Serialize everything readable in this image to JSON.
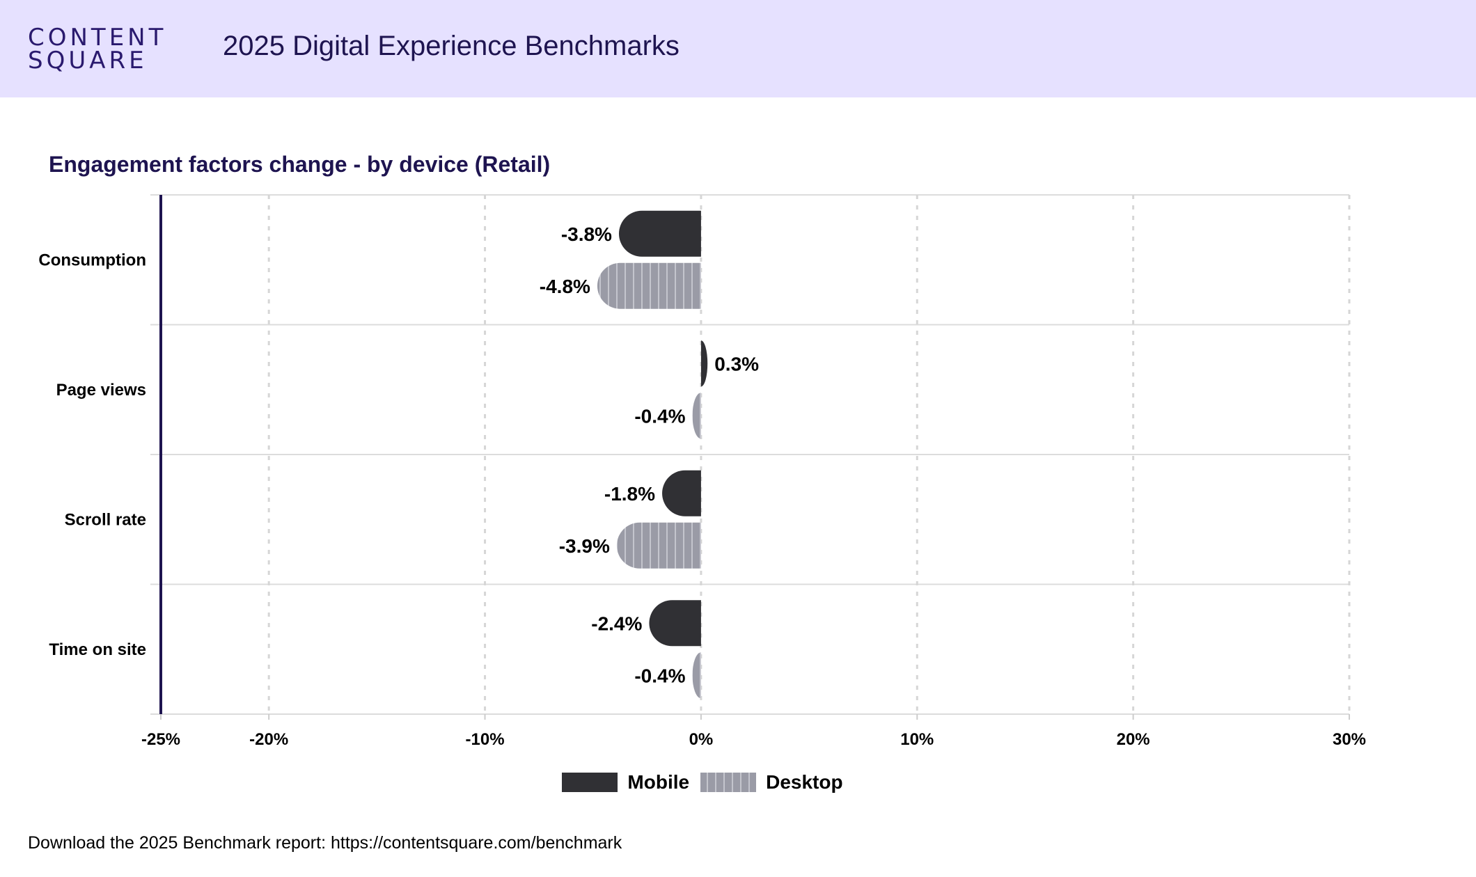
{
  "header": {
    "logo_line1": "CONTENT",
    "logo_line2": "SQUARE",
    "title": "2025 Digital Experience Benchmarks"
  },
  "footer": {
    "note": "Download the 2025 Benchmark report: https://contentsquare.com/benchmark"
  },
  "colors": {
    "header_bg": "#e6e1ff",
    "title": "#1e1450",
    "mobile": "#303034",
    "desktop": "#9a9ba6",
    "axis_line": "#1e1450"
  },
  "chart_data": {
    "type": "bar",
    "orientation": "horizontal",
    "title": "Engagement factors change - by device (Retail)",
    "categories": [
      "Consumption",
      "Page views",
      "Scroll rate",
      "Time on site"
    ],
    "series": [
      {
        "name": "Mobile",
        "values": [
          -3.8,
          0.3,
          -1.8,
          -2.4
        ],
        "labels": [
          "-3.8%",
          "0.3%",
          "-1.8%",
          "-2.4%"
        ]
      },
      {
        "name": "Desktop",
        "values": [
          -4.8,
          -0.4,
          -3.9,
          -0.4
        ],
        "labels": [
          "-4.8%",
          "-0.4%",
          "-3.9%",
          "-0.4%"
        ]
      }
    ],
    "xlim": [
      -25,
      30
    ],
    "xticks": [
      -25,
      -20,
      -10,
      0,
      10,
      20,
      30
    ],
    "xtick_labels": [
      "-25%",
      "-20%",
      "-10%",
      "0%",
      "10%",
      "20%",
      "30%"
    ],
    "grid": true,
    "legend_position": "bottom"
  }
}
